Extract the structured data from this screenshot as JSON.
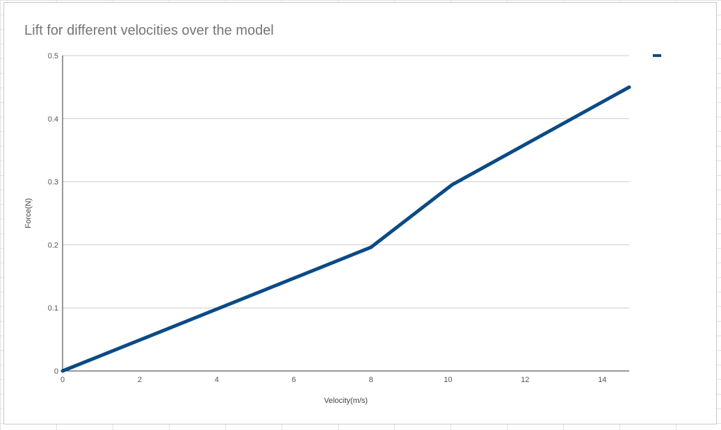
{
  "chart_data": {
    "type": "line",
    "title": "Lift for different velocities over the model",
    "xlabel": "Velocity(m/s)",
    "ylabel": "Force(N)",
    "xlim": [
      0,
      14.7
    ],
    "ylim": [
      0,
      0.5
    ],
    "x_ticks": [
      "0",
      "2",
      "4",
      "6",
      "8",
      "10",
      "12",
      "14"
    ],
    "y_ticks": [
      "0",
      "0.1",
      "0.2",
      "0.3",
      "0.4",
      "0.5"
    ],
    "grid": true,
    "legend": "top-right",
    "series": [
      {
        "color": "#0b4a85",
        "points": [
          [
            0,
            0
          ],
          [
            8,
            0.196
          ],
          [
            10.1,
            0.295
          ],
          [
            14.7,
            0.45
          ]
        ]
      }
    ]
  }
}
